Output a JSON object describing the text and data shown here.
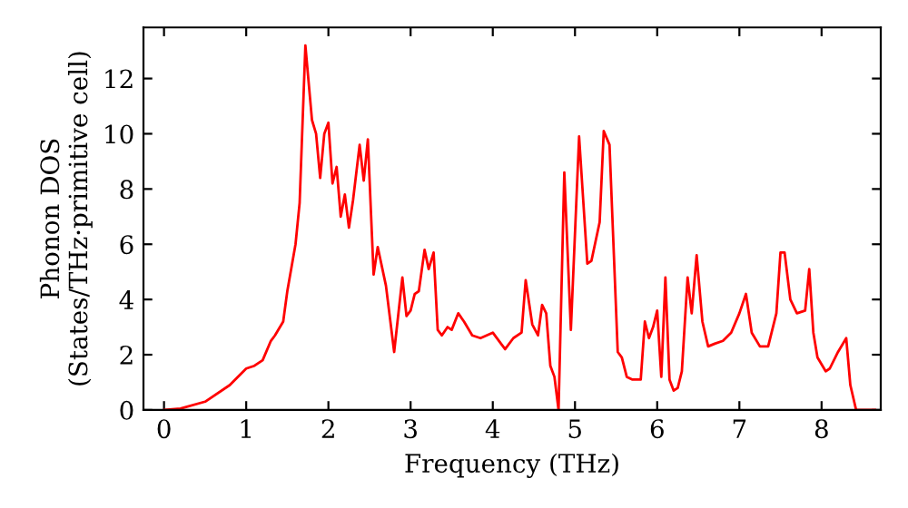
{
  "chart_data": {
    "type": "line",
    "xlabel": "Frequency (THz)",
    "ylabel": "Phonon DOS\n(States/THz·primitive cell)",
    "xlim": [
      -0.25,
      8.72
    ],
    "ylim": [
      0,
      13.85
    ],
    "xticks": [
      0,
      1,
      2,
      3,
      4,
      5,
      6,
      7,
      8
    ],
    "yticks": [
      0,
      2,
      4,
      6,
      8,
      10,
      12
    ],
    "grid": false,
    "legend": false,
    "series": [
      {
        "color": "#ff0000",
        "x": [
          0,
          0.2,
          0.5,
          0.8,
          1.0,
          1.1,
          1.2,
          1.3,
          1.35,
          1.45,
          1.5,
          1.6,
          1.65,
          1.72,
          1.8,
          1.85,
          1.9,
          1.95,
          2.0,
          2.05,
          2.1,
          2.15,
          2.2,
          2.25,
          2.3,
          2.38,
          2.43,
          2.48,
          2.55,
          2.6,
          2.7,
          2.8,
          2.9,
          2.95,
          3.0,
          3.05,
          3.1,
          3.17,
          3.22,
          3.28,
          3.33,
          3.38,
          3.45,
          3.5,
          3.58,
          3.65,
          3.75,
          3.85,
          4.0,
          4.1,
          4.15,
          4.25,
          4.35,
          4.4,
          4.48,
          4.55,
          4.6,
          4.65,
          4.7,
          4.75,
          4.8,
          4.87,
          4.95,
          5.05,
          5.15,
          5.2,
          5.3,
          5.35,
          5.42,
          5.52,
          5.57,
          5.63,
          5.7,
          5.8,
          5.85,
          5.9,
          5.95,
          6.0,
          6.05,
          6.1,
          6.15,
          6.2,
          6.25,
          6.3,
          6.37,
          6.42,
          6.48,
          6.55,
          6.62,
          6.7,
          6.8,
          6.9,
          7.0,
          7.08,
          7.15,
          7.25,
          7.35,
          7.45,
          7.5,
          7.55,
          7.62,
          7.7,
          7.8,
          7.85,
          7.9,
          7.95,
          8.05,
          8.1,
          8.2,
          8.3,
          8.35,
          8.42,
          8.65
        ],
        "values": [
          0,
          0.05,
          0.3,
          0.9,
          1.5,
          1.6,
          1.8,
          2.5,
          2.7,
          3.2,
          4.3,
          6,
          7.5,
          13.2,
          10.5,
          10,
          8.4,
          10,
          10.4,
          8.2,
          8.8,
          7,
          7.8,
          6.6,
          7.6,
          9.6,
          8.3,
          9.8,
          4.9,
          5.9,
          4.5,
          2.1,
          4.8,
          3.4,
          3.6,
          4.2,
          4.3,
          5.8,
          5.1,
          5.7,
          2.9,
          2.7,
          3.0,
          2.9,
          3.5,
          3.2,
          2.7,
          2.6,
          2.8,
          2.4,
          2.2,
          2.6,
          2.8,
          4.7,
          3.1,
          2.7,
          3.8,
          3.5,
          1.6,
          1.2,
          0,
          8.6,
          2.9,
          9.9,
          5.3,
          5.4,
          6.8,
          10.1,
          9.6,
          2.1,
          1.9,
          1.2,
          1.1,
          1.1,
          3.2,
          2.6,
          3.0,
          3.6,
          1.2,
          4.8,
          1.1,
          0.7,
          0.8,
          1.4,
          4.8,
          3.5,
          5.6,
          3.2,
          2.3,
          2.4,
          2.5,
          2.8,
          3.5,
          4.2,
          2.8,
          2.3,
          2.3,
          3.5,
          5.7,
          5.7,
          4.0,
          3.5,
          3.6,
          5.1,
          2.8,
          1.9,
          1.4,
          1.5,
          2.1,
          2.6,
          0.9,
          0,
          0
        ]
      }
    ]
  }
}
